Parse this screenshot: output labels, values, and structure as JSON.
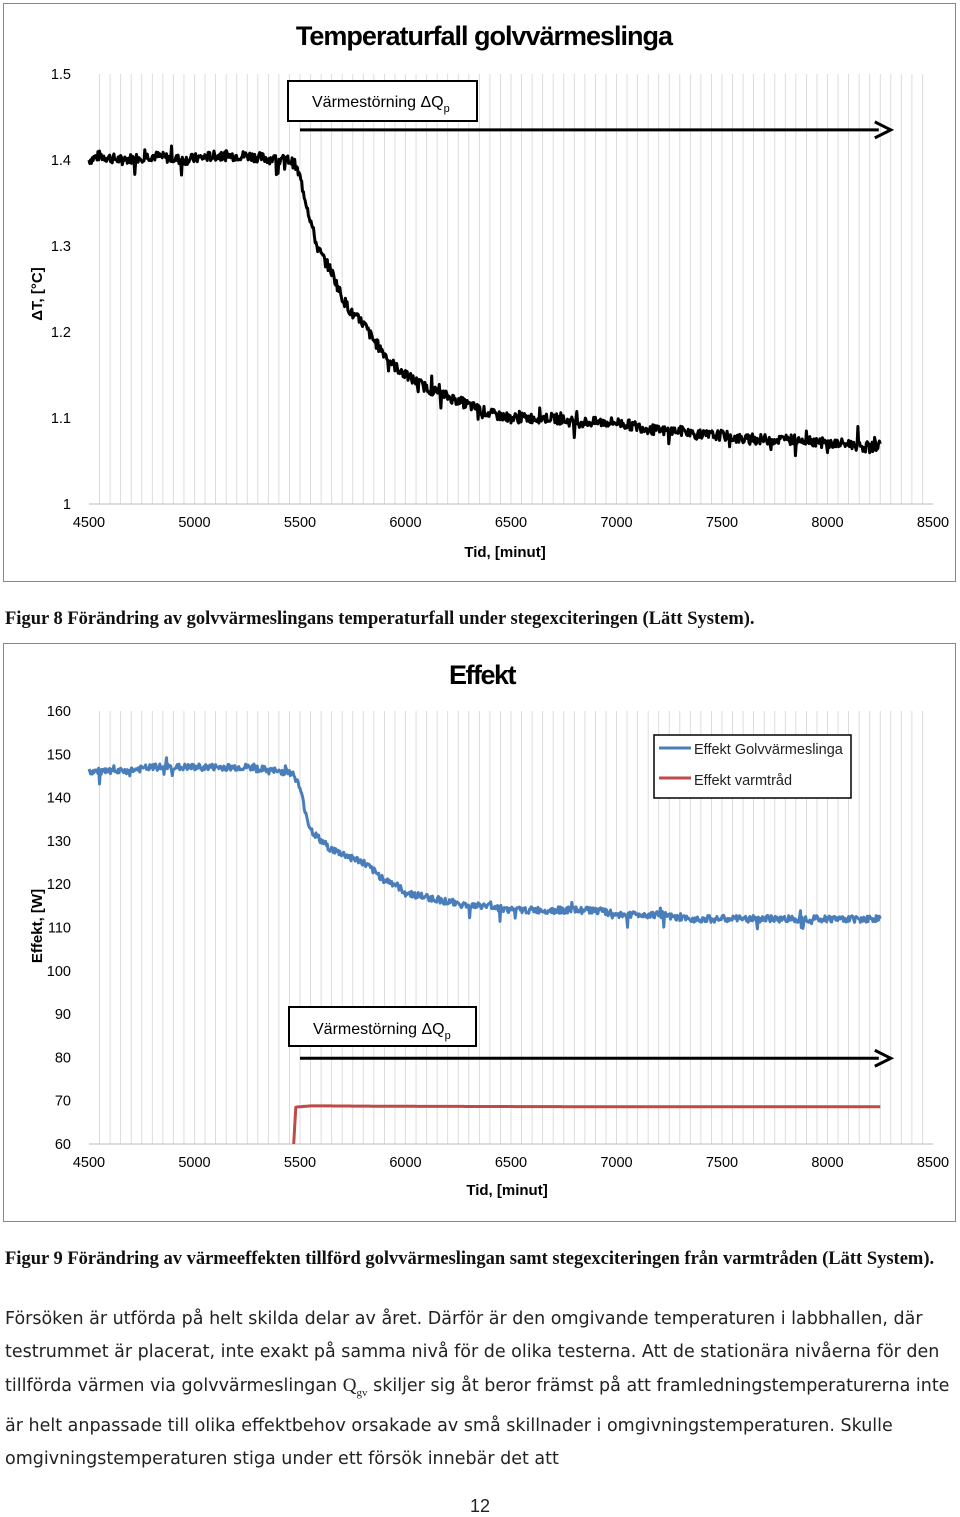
{
  "figure8": {
    "chart_data": {
      "type": "line",
      "title": "Temperaturfall golvvärmeslinga",
      "xlabel": "Tid, [minut]",
      "ylabel": "ΔT, [°C]",
      "xlim": [
        4500,
        8500
      ],
      "ylim": [
        1,
        1.5
      ],
      "xticks": [
        "4500",
        "5000",
        "5500",
        "6000",
        "6500",
        "7000",
        "7500",
        "8000",
        "8500"
      ],
      "yticks": [
        "1",
        "1.1",
        "1.2",
        "1.3",
        "1.4",
        "1.5"
      ],
      "grid": true,
      "series": [
        {
          "color": "#000000",
          "x": [
            4500,
            4550,
            4650,
            4800,
            4950,
            5100,
            5250,
            5400,
            5450,
            5475,
            5500,
            5520,
            5540,
            5560,
            5580,
            5600,
            5625,
            5650,
            5700,
            5750,
            5800,
            5850,
            5900,
            5950,
            6000,
            6100,
            6200,
            6300,
            6400,
            6500,
            6600,
            6700,
            6800,
            6900,
            7000,
            7100,
            7200,
            7300,
            7400,
            7500,
            7600,
            7700,
            7800,
            7900,
            8000,
            8100,
            8200,
            8250
          ],
          "y": [
            1.4,
            1.405,
            1.4,
            1.405,
            1.4,
            1.405,
            1.405,
            1.4,
            1.4,
            1.395,
            1.38,
            1.36,
            1.34,
            1.32,
            1.3,
            1.29,
            1.28,
            1.27,
            1.24,
            1.22,
            1.21,
            1.19,
            1.175,
            1.16,
            1.15,
            1.135,
            1.125,
            1.115,
            1.105,
            1.1,
            1.1,
            1.1,
            1.095,
            1.095,
            1.095,
            1.09,
            1.085,
            1.085,
            1.08,
            1.08,
            1.075,
            1.075,
            1.075,
            1.075,
            1.07,
            1.07,
            1.065,
            1.07
          ]
        }
      ],
      "annotation": {
        "text": "Värmestörning ΔQ",
        "subscript": "p",
        "arrow_from_x": 5500,
        "arrow_to_x": 8300,
        "y": 1.435
      }
    },
    "caption": "Figur 8 Förändring av golvvärmeslingans temperaturfall under stegexciteringen (Lätt System)."
  },
  "figure9": {
    "chart_data": {
      "type": "line",
      "title": "Effekt",
      "xlabel": "Tid, [minut]",
      "ylabel": "Effekt, [W]",
      "xlim": [
        4500,
        8500
      ],
      "ylim": [
        60,
        160
      ],
      "xticks": [
        "4500",
        "5000",
        "5500",
        "6000",
        "6500",
        "7000",
        "7500",
        "8000",
        "8500"
      ],
      "yticks": [
        "60",
        "70",
        "80",
        "90",
        "100",
        "110",
        "120",
        "130",
        "140",
        "150",
        "160"
      ],
      "grid": true,
      "legend_position": "top-right",
      "series": [
        {
          "name": "Effekt Golvvärmeslinga",
          "color": "#4a7ebb",
          "x": [
            4500,
            4550,
            4650,
            4800,
            4950,
            5100,
            5250,
            5400,
            5450,
            5475,
            5500,
            5520,
            5540,
            5560,
            5580,
            5600,
            5625,
            5650,
            5700,
            5750,
            5800,
            5850,
            5900,
            5950,
            6000,
            6100,
            6200,
            6300,
            6400,
            6500,
            6600,
            6700,
            6800,
            6900,
            7000,
            7100,
            7200,
            7300,
            7400,
            7500,
            7600,
            7700,
            7800,
            7900,
            8000,
            8100,
            8200,
            8250
          ],
          "y": [
            146,
            146,
            146,
            147,
            147,
            147,
            147,
            146,
            146,
            145,
            142,
            138,
            134,
            132,
            131,
            130,
            129,
            128,
            127,
            126,
            125,
            123,
            121,
            120,
            118,
            117,
            116,
            115,
            115,
            114,
            114,
            114,
            114,
            114,
            113,
            113,
            113,
            112,
            112,
            112,
            112,
            112,
            112,
            112,
            112,
            112,
            112,
            112
          ]
        },
        {
          "name": "Effekt varmtråd",
          "color": "#be4b48",
          "x": [
            5470,
            5480,
            5500,
            5550,
            5600,
            6000,
            7000,
            8000,
            8250
          ],
          "y": [
            60,
            68.5,
            68.6,
            68.8,
            68.8,
            68.7,
            68.6,
            68.6,
            68.6
          ]
        }
      ],
      "annotation": {
        "text": "Värmestörning ΔQ",
        "subscript": "p",
        "arrow_from_x": 5500,
        "arrow_to_x": 8300,
        "y": 79.8
      }
    },
    "caption": "Figur 9 Förändring av värmeeffekten tillförd golvvärmeslingan samt stegexciteringen från varmtråden (Lätt System)."
  },
  "body": {
    "p1": "Försöken är utförda på helt skilda delar av året. Därför är den omgivande temperaturen i labbhallen, där testrummet är placerat, inte exakt på samma nivå för de olika testerna. Att de stationära nivåerna för den tillförda värmen via golvvärmeslingan ",
    "q_symbol": "Q",
    "q_sub": "gv",
    "p2": " skiljer sig åt beror främst på att framledningstemperaturerna inte är helt anpassade till olika effektbehov orsakade av små skillnader i omgivningstemperaturen. Skulle omgivningstemperaturen stiga under ett försök innebär det att"
  },
  "page_number": "12"
}
